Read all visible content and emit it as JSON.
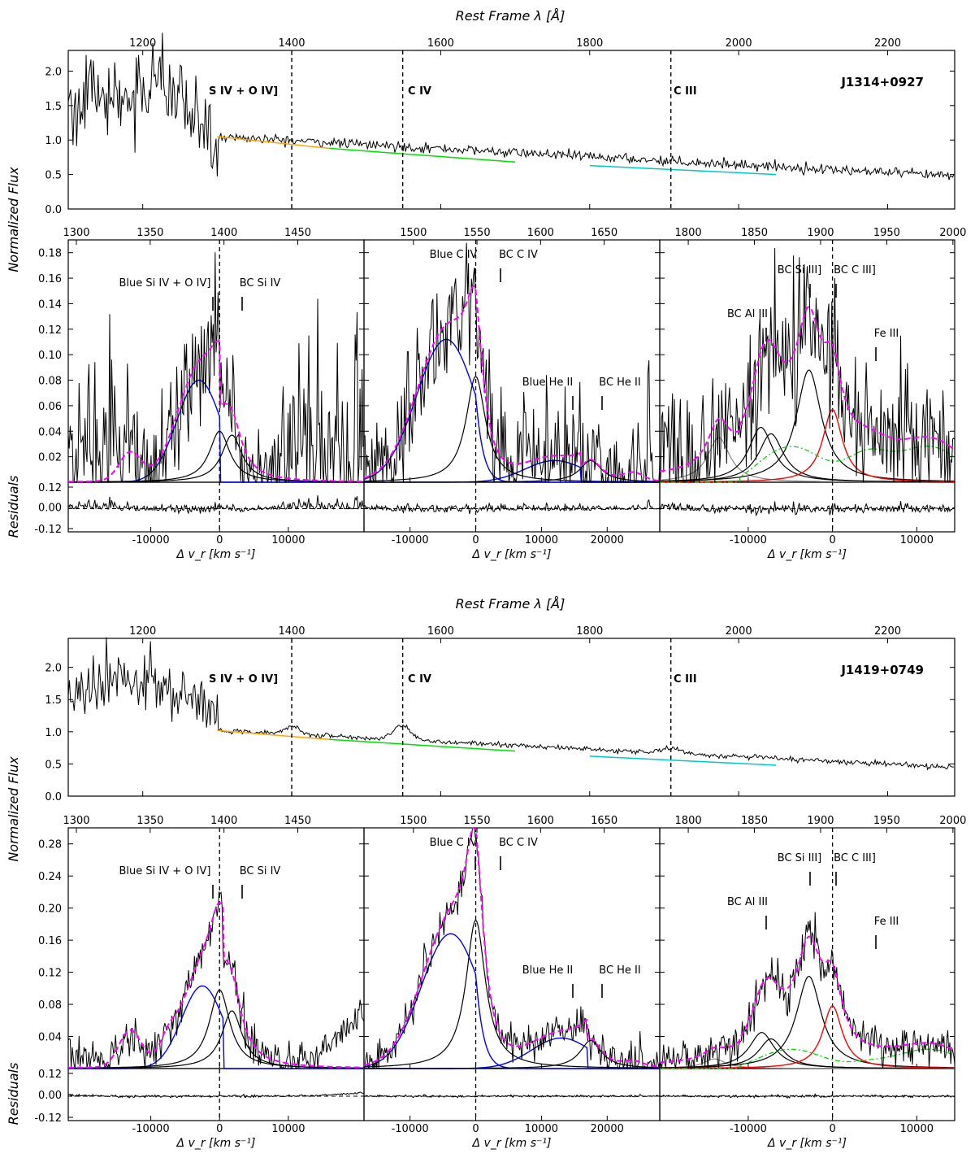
{
  "figure": {
    "top_xlabel": "Rest Frame λ [Å]",
    "ylabel_flux": "Normalized Flux",
    "ylabel_resid": "Residuals",
    "xlabel_vel": "Δ v_r [km s⁻¹]"
  },
  "colors": {
    "spectrum": "#000000",
    "continuum_1": "#ffa500",
    "continuum_2": "#00e000",
    "continuum_3": "#00c8c8",
    "blue_component": "#0000ff",
    "broad_component": "#000000",
    "total_fit": "#ff00ff",
    "red_component": "#ff0000",
    "feiii_template": "#00cc00",
    "gray_component": "#888888"
  },
  "chart_data": [
    {
      "type": "line",
      "object": "J1314+0927",
      "title": "J1314+0927",
      "overview": {
        "xlabel": "Rest Frame λ [Å]",
        "ylabel": "Normalized Flux",
        "xlim": [
          1100,
          2290
        ],
        "ylim": [
          0,
          2.3
        ],
        "xticks": [
          1200,
          1400,
          1600,
          1800,
          2000,
          2200
        ],
        "yticks": [
          "0.0",
          "0.5",
          "1.0",
          "1.5",
          "2.0"
        ],
        "region_lines": [
          1400,
          1549,
          1909
        ],
        "region_labels": [
          "S IV + O IV]",
          "C IV",
          "C III"
        ],
        "continuum_segments": [
          {
            "x": [
              1300,
              1450
            ],
            "y": [
              1.05,
              0.88
            ],
            "color": "orange"
          },
          {
            "x": [
              1450,
              1700
            ],
            "y": [
              0.88,
              0.68
            ],
            "color": "lime"
          },
          {
            "x": [
              1800,
              2050
            ],
            "y": [
              0.63,
              0.5
            ],
            "color": "cyan"
          }
        ]
      },
      "panels": [
        {
          "region": "Si IV + O IV]",
          "top_ticks": [
            "1300",
            "1350",
            "1400",
            "1450"
          ],
          "vel_ticks": [
            "-10000",
            "0",
            "10000"
          ],
          "yticks": [
            "0.02",
            "0.04",
            "0.06",
            "0.08",
            "0.10",
            "0.12",
            "0.14",
            "0.16",
            "0.18"
          ],
          "ylim": [
            0,
            0.19
          ],
          "resid_ticks": [
            "0.12",
            "0.00",
            "-0.12"
          ],
          "line_labels": [
            "Blue Si IV + O IV]",
            "BC Si IV"
          ],
          "components": {
            "blue": {
              "center": -3000,
              "amp": 0.08,
              "sigma": 3200
            },
            "bc1": {
              "center": 0,
              "amp": 0.04,
              "sigma": 1800
            },
            "bc2": {
              "center": 1800,
              "amp": 0.037,
              "sigma": 1800
            }
          }
        },
        {
          "region": "C IV",
          "top_ticks": [
            "1500",
            "1550",
            "1600",
            "1650"
          ],
          "vel_ticks": [
            "-10000",
            "0",
            "10000",
            "20000"
          ],
          "yticks": [
            "0.02",
            "0.04",
            "0.06",
            "0.08",
            "0.10",
            "0.12",
            "0.14",
            "0.16",
            "0.18"
          ],
          "ylim": [
            0,
            0.19
          ],
          "resid_ticks": [],
          "line_labels": [
            "Blue C IV",
            "BC C IV",
            "Blue He II",
            "BC He II"
          ],
          "components": {
            "blue": {
              "center": -4500,
              "amp": 0.112,
              "sigma": 4500
            },
            "bc": {
              "center": 0,
              "amp": 0.083,
              "sigma": 1800
            },
            "blue_he": {
              "center": 12000,
              "amp": 0.017,
              "sigma": 4500
            },
            "bc_he": {
              "center": 17500,
              "amp": 0.017,
              "sigma": 2000
            }
          }
        },
        {
          "region": "C III]",
          "top_ticks": [
            "1800",
            "1850",
            "1900",
            "1950",
            "2000"
          ],
          "vel_ticks": [
            "-10000",
            "0",
            "10000"
          ],
          "yticks": [
            "0.02",
            "0.04",
            "0.06",
            "0.08",
            "0.10",
            "0.12",
            "0.14",
            "0.16",
            "0.18"
          ],
          "ylim": [
            0,
            0.19
          ],
          "resid_ticks": [],
          "line_labels": [
            "BC Al III",
            "BC Si III]",
            "BC C III]",
            "Fe III"
          ],
          "components": {
            "al1": {
              "center": -8500,
              "amp": 0.043,
              "sigma": 1800
            },
            "al2": {
              "center": -7300,
              "amp": 0.038,
              "sigma": 1800
            },
            "si": {
              "center": -2800,
              "amp": 0.088,
              "sigma": 1800
            },
            "ciii": {
              "center": 0,
              "amp": 0.057,
              "sigma": 1400
            },
            "gray": {
              "center": -13500,
              "amp": 0.035,
              "sigma": 1600
            }
          }
        }
      ]
    },
    {
      "type": "line",
      "object": "J1419+0749",
      "title": "J1419+0749",
      "overview": {
        "xlabel": "Rest Frame λ [Å]",
        "ylabel": "Normalized Flux",
        "xlim": [
          1100,
          2290
        ],
        "ylim": [
          0,
          2.45
        ],
        "xticks": [
          1200,
          1400,
          1600,
          1800,
          2000,
          2200
        ],
        "yticks": [
          "0.0",
          "0.5",
          "1.0",
          "1.5",
          "2.0"
        ],
        "region_lines": [
          1400,
          1549,
          1909
        ],
        "region_labels": [
          "S IV + O IV]",
          "C IV",
          "C III"
        ],
        "continuum_segments": [
          {
            "x": [
              1300,
              1450
            ],
            "y": [
              1.02,
              0.88
            ],
            "color": "orange"
          },
          {
            "x": [
              1450,
              1700
            ],
            "y": [
              0.88,
              0.7
            ],
            "color": "lime"
          },
          {
            "x": [
              1800,
              2050
            ],
            "y": [
              0.62,
              0.48
            ],
            "color": "cyan"
          }
        ]
      },
      "panels": [
        {
          "region": "Si IV + O IV]",
          "top_ticks": [
            "1300",
            "1350",
            "1400",
            "1450"
          ],
          "vel_ticks": [
            "-10000",
            "0",
            "10000"
          ],
          "yticks": [
            "0.04",
            "0.08",
            "0.12",
            "0.16",
            "0.20",
            "0.24",
            "0.28"
          ],
          "ylim": [
            0,
            0.3
          ],
          "resid_ticks": [
            "0.12",
            "0.00",
            "-0.12"
          ],
          "line_labels": [
            "Blue Si IV + O IV]",
            "BC Si IV"
          ],
          "components": {
            "blue": {
              "center": -2500,
              "amp": 0.103,
              "sigma": 3000
            },
            "bc1": {
              "center": 0,
              "amp": 0.098,
              "sigma": 1800
            },
            "bc2": {
              "center": 1800,
              "amp": 0.072,
              "sigma": 1800
            }
          }
        },
        {
          "region": "C IV",
          "top_ticks": [
            "1500",
            "1550",
            "1600",
            "1650"
          ],
          "vel_ticks": [
            "-10000",
            "0",
            "10000",
            "20000"
          ],
          "yticks": [
            "0.04",
            "0.08",
            "0.12",
            "0.16",
            "0.20",
            "0.24",
            "0.28"
          ],
          "ylim": [
            0,
            0.3
          ],
          "resid_ticks": [],
          "line_labels": [
            "Blue C IV",
            "BC C IV",
            "Blue He II",
            "BC He II"
          ],
          "components": {
            "blue": {
              "center": -3800,
              "amp": 0.168,
              "sigma": 4500
            },
            "bc": {
              "center": 0,
              "amp": 0.185,
              "sigma": 1800
            },
            "blue_he": {
              "center": 13000,
              "amp": 0.038,
              "sigma": 4500
            },
            "bc_he": {
              "center": 17500,
              "amp": 0.035,
              "sigma": 2000
            }
          }
        },
        {
          "region": "C III]",
          "top_ticks": [
            "1800",
            "1850",
            "1900",
            "1950",
            "2000"
          ],
          "vel_ticks": [
            "-10000",
            "0",
            "10000"
          ],
          "yticks": [
            "0.04",
            "0.08",
            "0.12",
            "0.16",
            "0.20",
            "0.24",
            "0.28"
          ],
          "ylim": [
            0,
            0.3
          ],
          "resid_ticks": [],
          "line_labels": [
            "BC Al III",
            "BC Si III]",
            "BC C III]",
            "Fe III"
          ],
          "components": {
            "al1": {
              "center": -8400,
              "amp": 0.045,
              "sigma": 1800
            },
            "al2": {
              "center": -7300,
              "amp": 0.037,
              "sigma": 1800
            },
            "si": {
              "center": -2800,
              "amp": 0.115,
              "sigma": 1800
            },
            "ciii": {
              "center": 0,
              "amp": 0.078,
              "sigma": 1400
            },
            "gray": {
              "center": -14000,
              "amp": 0.012,
              "sigma": 1600
            }
          }
        }
      ]
    }
  ]
}
